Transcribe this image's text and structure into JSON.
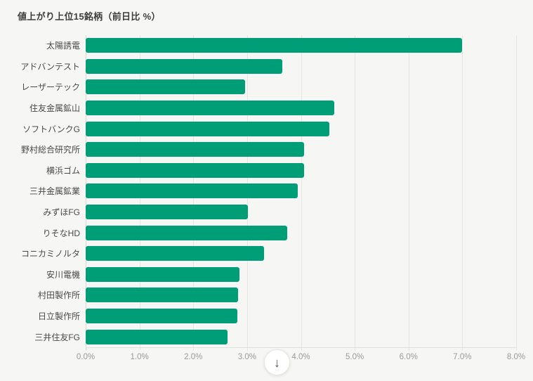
{
  "page": {
    "title": "値上がり上位15銘柄（前日比 %）"
  },
  "chart_data": {
    "type": "bar",
    "orientation": "horizontal",
    "title": "値上がり上位15銘柄（前日比 %）",
    "categories": [
      "太陽誘電",
      "アドバンテスト",
      "レーザーテック",
      "住友金属鉱山",
      "ソフトバンクG",
      "野村総合研究所",
      "横浜ゴム",
      "三井金属鉱業",
      "みずほFG",
      "りそなHD",
      "コニカミノルタ",
      "安川電機",
      "村田製作所",
      "日立製作所",
      "三井住友FG"
    ],
    "values": [
      7.0,
      3.66,
      2.96,
      4.62,
      4.53,
      4.06,
      4.06,
      3.94,
      3.02,
      3.75,
      3.31,
      2.86,
      2.83,
      2.82,
      2.64
    ],
    "unit": "%",
    "xlabel": "",
    "ylabel": "",
    "xlim": [
      0,
      8
    ],
    "x_ticks": [
      "0.0%",
      "1.0%",
      "2.0%",
      "3.0%",
      "4.0%",
      "5.0%",
      "6.0%",
      "7.0%",
      "8.0%"
    ],
    "grid": true,
    "legend": false,
    "bar_color": "#009E77"
  },
  "controls": {
    "scroll_down_button": {
      "icon": "↓"
    }
  }
}
